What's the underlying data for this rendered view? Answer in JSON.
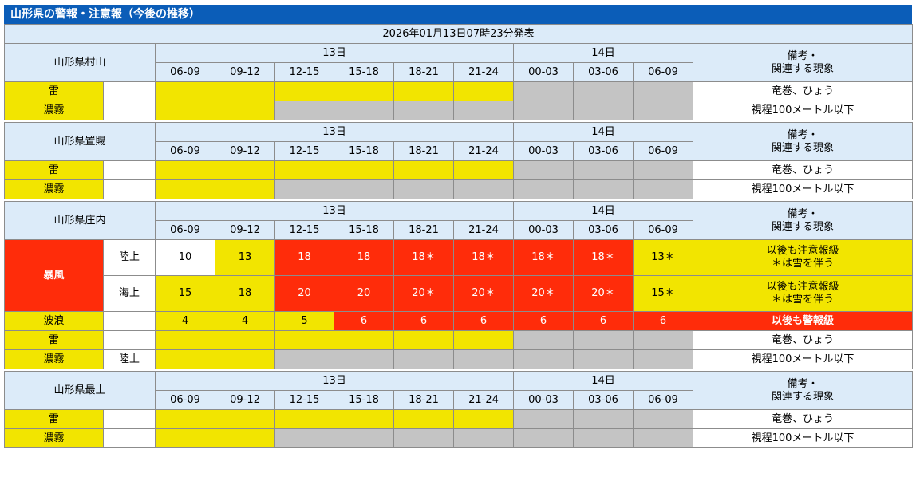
{
  "title": "山形県の警報・注意報（今後の推移）",
  "announcement": "2026年01月13日07時23分発表",
  "date_labels": [
    "13日",
    "14日"
  ],
  "time_slots": [
    "06-09",
    "09-12",
    "12-15",
    "15-18",
    "18-21",
    "21-24",
    "00-03",
    "03-06",
    "06-09"
  ],
  "notes_header": [
    "備考・",
    "関連する現象"
  ],
  "notes": {
    "thunder": "竜巻、ひょう",
    "fog": "視程100メートル以下"
  },
  "items": {
    "thunder": "雷",
    "fog": "濃霧",
    "wind": "暴風",
    "wave": "波浪"
  },
  "sub_labels": {
    "land": "陸上",
    "sea": "海上"
  },
  "colors": {
    "header": "#0B5DB8",
    "region_cell": "#DCEBF9",
    "advisory_yellow": "#F2E500",
    "warning_red": "#FF2C0A",
    "none_gray": "#C4C4C4"
  },
  "regions": [
    {
      "name": "山形県村山",
      "thunder_levels": [
        "y",
        "y",
        "y",
        "y",
        "y",
        "y",
        "g",
        "g",
        "g"
      ],
      "fog_levels": [
        "y",
        "y",
        "g",
        "g",
        "g",
        "g",
        "g",
        "g",
        "g"
      ]
    },
    {
      "name": "山形県置賜",
      "thunder_levels": [
        "y",
        "y",
        "y",
        "y",
        "y",
        "y",
        "g",
        "g",
        "g"
      ],
      "fog_levels": [
        "y",
        "y",
        "g",
        "g",
        "g",
        "g",
        "g",
        "g",
        "g"
      ]
    },
    {
      "name": "山形県庄内",
      "wind_land": {
        "values": [
          "10",
          "13",
          "18",
          "18",
          "18＊",
          "18＊",
          "18＊",
          "18＊",
          "13＊"
        ],
        "levels": [
          "w",
          "y",
          "r",
          "r",
          "r",
          "r",
          "r",
          "r",
          "y"
        ],
        "note": [
          "以後も注意報級",
          "＊は雪を伴う"
        ]
      },
      "wind_sea": {
        "values": [
          "15",
          "18",
          "20",
          "20",
          "20＊",
          "20＊",
          "20＊",
          "20＊",
          "15＊"
        ],
        "levels": [
          "y",
          "y",
          "r",
          "r",
          "r",
          "r",
          "r",
          "r",
          "y"
        ],
        "note": [
          "以後も注意報級",
          "＊は雪を伴う"
        ]
      },
      "wave": {
        "values": [
          "4",
          "4",
          "5",
          "6",
          "6",
          "6",
          "6",
          "6",
          "6"
        ],
        "levels": [
          "y",
          "y",
          "y",
          "r",
          "r",
          "r",
          "r",
          "r",
          "r"
        ],
        "note": "以後も警報級"
      },
      "thunder_levels": [
        "y",
        "y",
        "y",
        "y",
        "y",
        "y",
        "g",
        "g",
        "g"
      ],
      "fog_levels": [
        "y",
        "y",
        "g",
        "g",
        "g",
        "g",
        "g",
        "g",
        "g"
      ],
      "fog_sub": "陸上"
    },
    {
      "name": "山形県最上",
      "thunder_levels": [
        "y",
        "y",
        "y",
        "y",
        "y",
        "y",
        "g",
        "g",
        "g"
      ],
      "fog_levels": [
        "y",
        "y",
        "g",
        "g",
        "g",
        "g",
        "g",
        "g",
        "g"
      ]
    }
  ]
}
